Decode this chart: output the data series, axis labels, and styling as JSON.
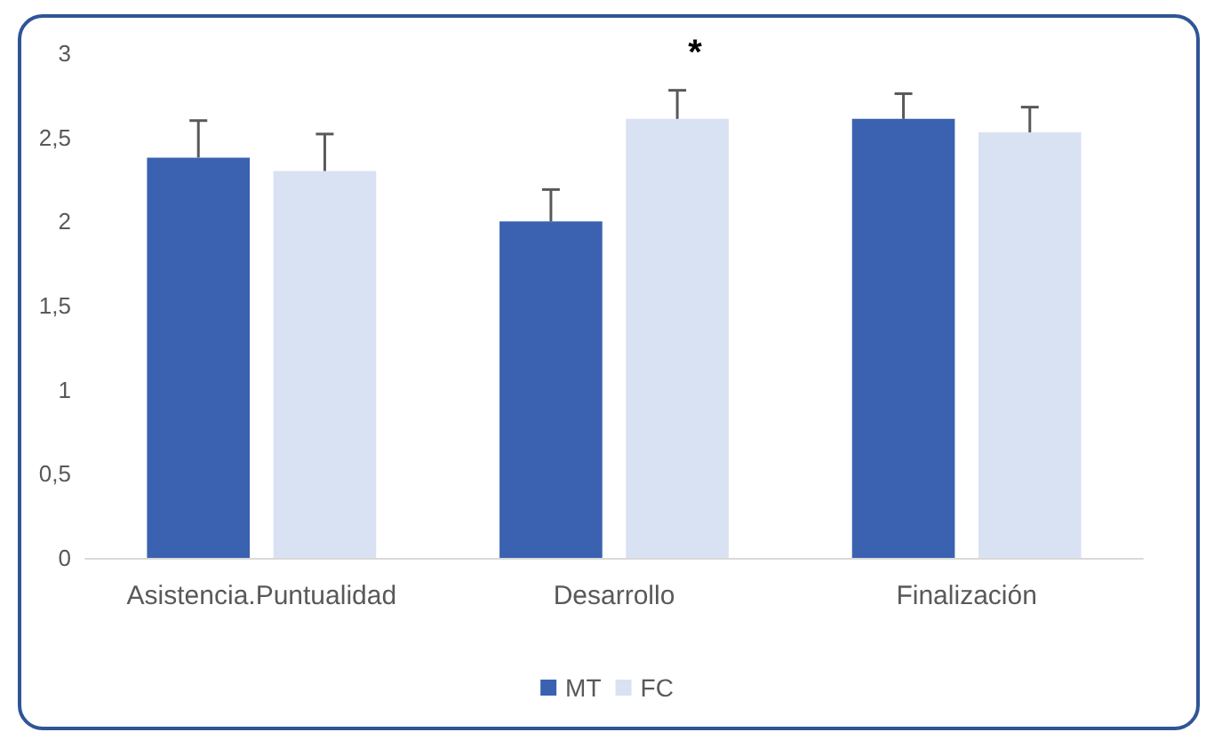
{
  "chart_data": {
    "type": "bar",
    "categories": [
      "Asistencia.Puntualidad",
      "Desarrollo",
      "Finalización"
    ],
    "series": [
      {
        "name": "MT",
        "color": "#3a62b0",
        "values": [
          2.38,
          2.0,
          2.61
        ],
        "errors": [
          [
            2.38,
            2.6
          ],
          [
            2.0,
            2.19
          ],
          [
            2.61,
            2.76
          ]
        ]
      },
      {
        "name": "FC",
        "color": "#d9e2f3",
        "values": [
          2.3,
          2.61,
          2.53
        ],
        "errors": [
          [
            2.3,
            2.52
          ],
          [
            2.61,
            2.78
          ],
          [
            2.53,
            2.68
          ]
        ]
      }
    ],
    "ylim": [
      0,
      3
    ],
    "yticks": [
      0,
      {
        "value": 0.5,
        "label": "0,5"
      },
      1,
      {
        "value": 1.5,
        "label": "1,5"
      },
      2,
      {
        "value": 2.5,
        "label": "2,5"
      },
      3
    ],
    "grid": false,
    "legend": "bottom",
    "annotations": [
      "*"
    ]
  }
}
